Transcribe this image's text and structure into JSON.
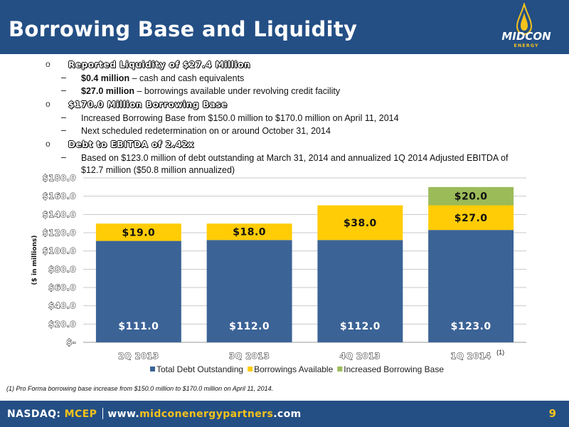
{
  "header": {
    "title": "Borrowing Base and Liquidity",
    "logo_text": "MIDCON",
    "logo_sub": "ENERGY"
  },
  "bullets": [
    {
      "heading": "Reported Liquidity of $27.4 Million",
      "items": [
        {
          "bold": "$0.4 million",
          "text": " – cash and cash equivalents"
        },
        {
          "bold": "$27.0 million",
          "text": " – borrowings available under revolving credit facility"
        }
      ]
    },
    {
      "heading": "$170.0 Million Borrowing Base",
      "items": [
        {
          "bold": "",
          "text": "Increased Borrowing Base from $150.0 million to $170.0 million on April 11, 2014"
        },
        {
          "bold": "",
          "text": "Next scheduled redetermination on or around October 31, 2014"
        }
      ]
    },
    {
      "heading": "Debt to EBITDA of 2.42x",
      "items": [
        {
          "bold": "",
          "text": "Based on $123.0 million of debt outstanding at March 31, 2014 and annualized 1Q 2014 Adjusted EBITDA of $12.7 million ($50.8 million annualized)"
        }
      ]
    }
  ],
  "chart_data": {
    "type": "bar",
    "stacked": true,
    "categories": [
      "2Q 2013",
      "3Q 2013",
      "4Q 2013",
      "1Q 2014"
    ],
    "category_notes": [
      "",
      "",
      "",
      "(1)"
    ],
    "series": [
      {
        "name": "Total Debt Outstanding",
        "color": "#3b6396",
        "values": [
          111.0,
          112.0,
          112.0,
          123.0
        ],
        "labels": [
          "$111.0",
          "$112.0",
          "$112.0",
          "$123.0"
        ]
      },
      {
        "name": "Borrowings Available",
        "color": "#ffcc05",
        "values": [
          19.0,
          18.0,
          38.0,
          27.0
        ],
        "labels": [
          "$19.0",
          "$18.0",
          "$38.0",
          "$27.0"
        ]
      },
      {
        "name": "Increased Borrowing Base",
        "color": "#9bbb59",
        "values": [
          0,
          0,
          0,
          20.0
        ],
        "labels": [
          "",
          "",
          "",
          "$20.0"
        ]
      }
    ],
    "ylabel": "($ in millions)",
    "ylim": [
      0,
      180
    ],
    "yticks": [
      0,
      20,
      40,
      60,
      80,
      100,
      120,
      140,
      160,
      180
    ],
    "ytick_labels": [
      "$-",
      "$20.0",
      "$40.0",
      "$60.0",
      "$80.0",
      "$100.0",
      "$120.0",
      "$140.0",
      "$160.0",
      "$180.0"
    ],
    "grid": true,
    "legend": "bottom"
  },
  "footnote": "(1) Pro Forma borrowing base increase from $150.0 million to $170.0 million on April 11, 2014.",
  "footer": {
    "exchange": "NASDAQ: ",
    "ticker": "MCEP",
    "url_prefix": "www.",
    "url_highlight": "midconenergypartners",
    "url_suffix": ".com",
    "page": "9"
  }
}
